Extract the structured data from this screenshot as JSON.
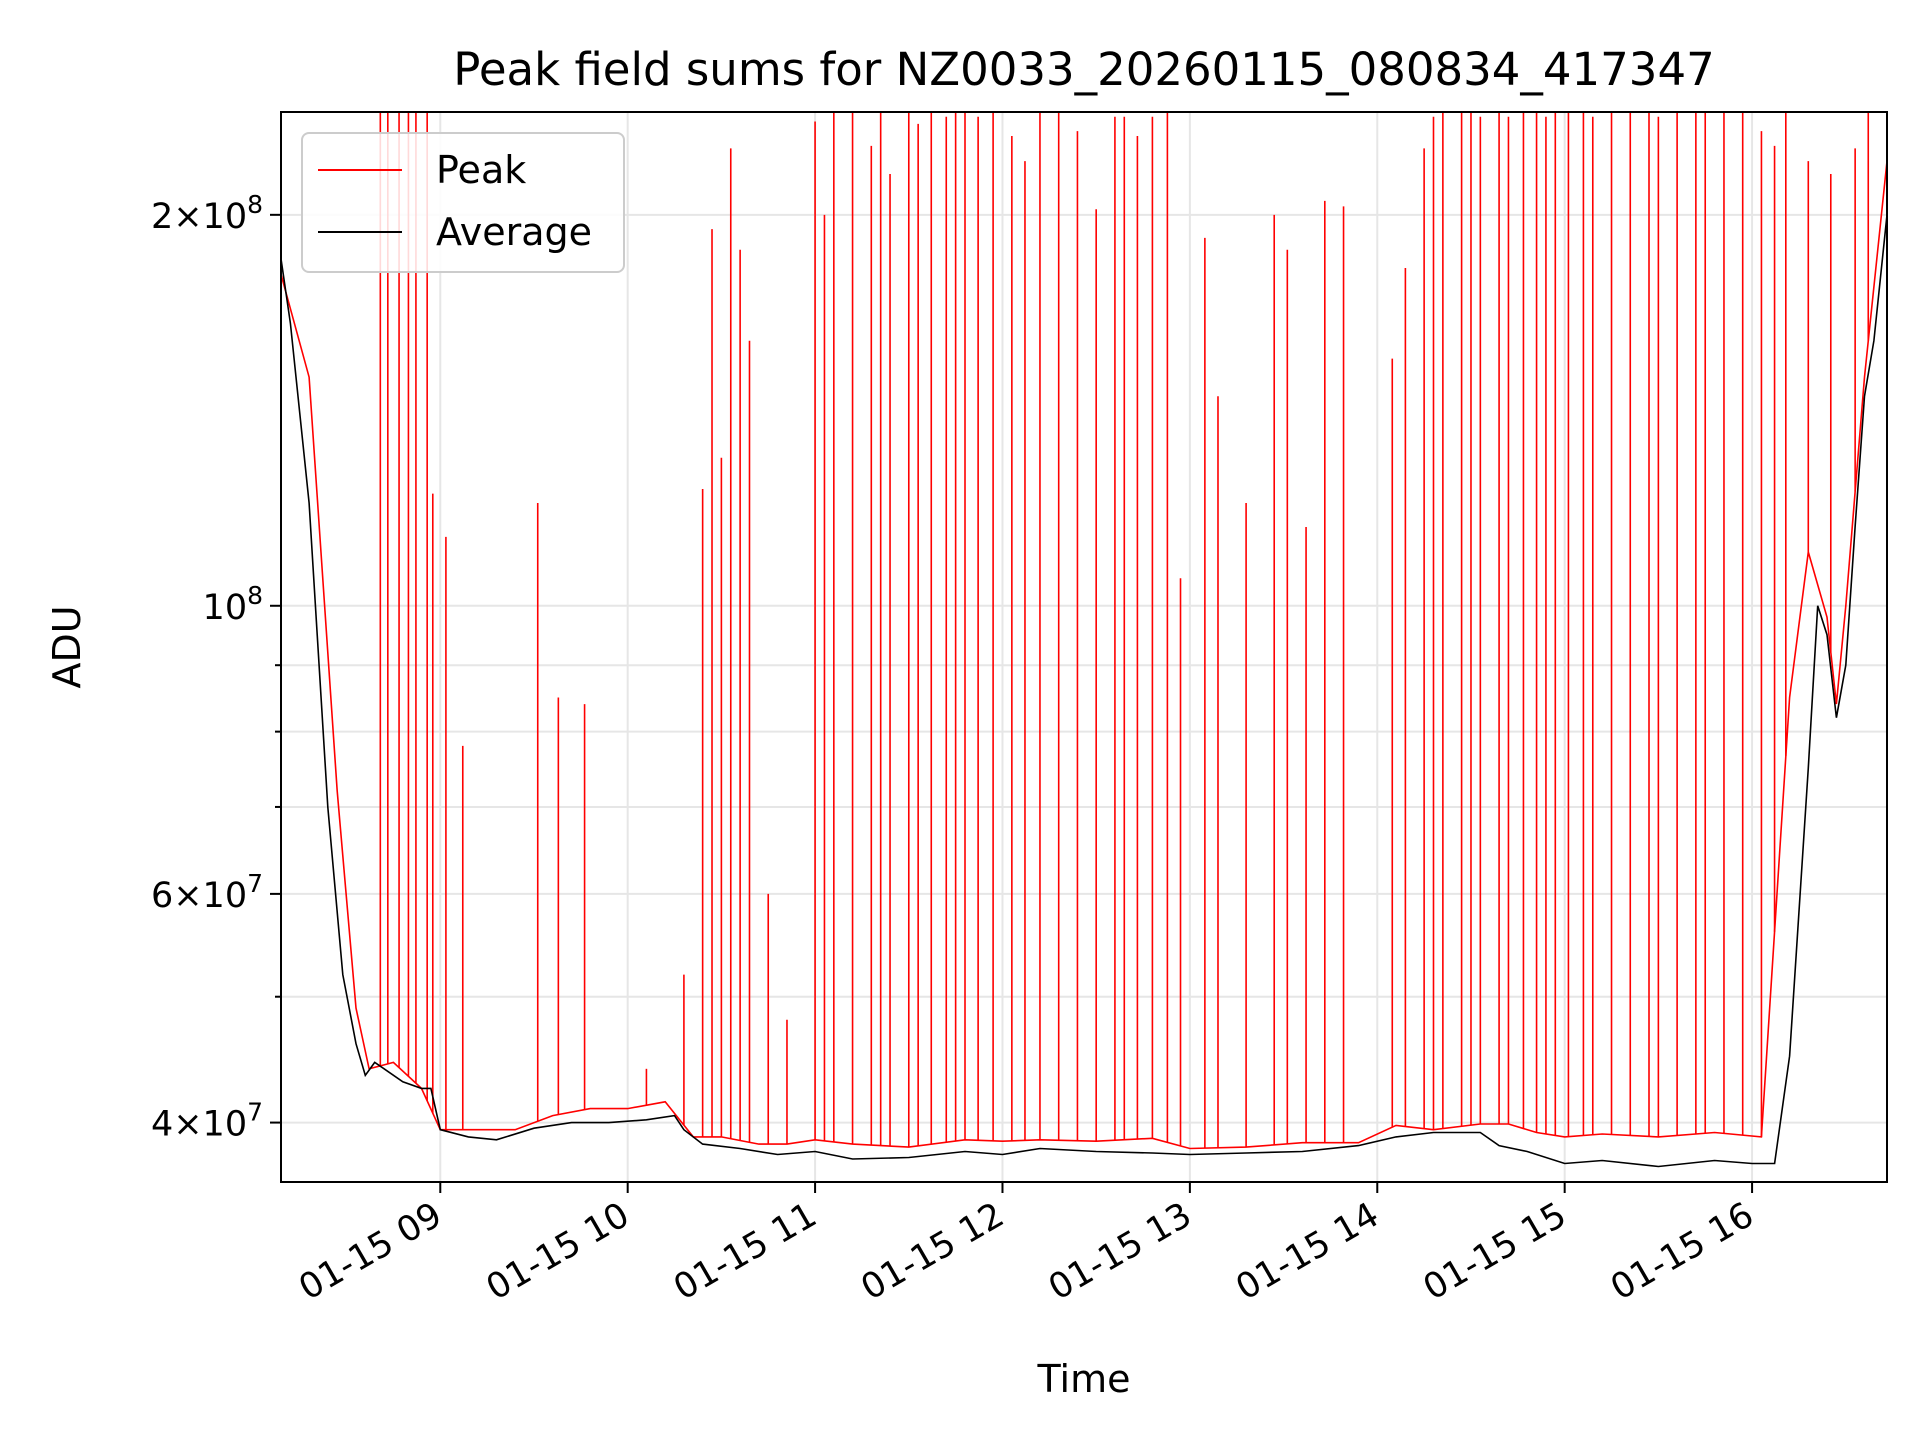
{
  "chart_data": {
    "type": "line",
    "title": "Peak field sums for NZ0033_20260115_080834_417347",
    "xlabel": "Time",
    "ylabel": "ADU",
    "yscale": "log",
    "grid": true,
    "legend_position": "upper-left",
    "x_unit": "hours since 01-15 00:00",
    "xlim": [
      8.15,
      16.72
    ],
    "ylim": [
      36000000,
      240000000
    ],
    "x_ticks": [
      {
        "value": 9,
        "label": "01-15 09"
      },
      {
        "value": 10,
        "label": "01-15 10"
      },
      {
        "value": 11,
        "label": "01-15 11"
      },
      {
        "value": 12,
        "label": "01-15 12"
      },
      {
        "value": 13,
        "label": "01-15 13"
      },
      {
        "value": 14,
        "label": "01-15 14"
      },
      {
        "value": 15,
        "label": "01-15 15"
      },
      {
        "value": 16,
        "label": "01-15 16"
      }
    ],
    "y_ticks": [
      {
        "value": 40000000,
        "base": "4×10",
        "exp": "7"
      },
      {
        "value": 60000000,
        "base": "6×10",
        "exp": "7"
      },
      {
        "value": 100000000,
        "base": "10",
        "exp": "8"
      },
      {
        "value": 200000000,
        "base": "2×10",
        "exp": "8"
      }
    ],
    "y_minor_ticks": [
      50000000,
      70000000,
      80000000,
      90000000
    ],
    "series": [
      {
        "name": "Peak",
        "color": "#ff0000",
        "baseline": {
          "x": [
            8.15,
            8.3,
            8.45,
            8.55,
            8.62,
            8.75,
            8.9,
            9.0,
            9.2,
            9.4,
            9.6,
            9.8,
            10.0,
            10.2,
            10.35,
            10.5,
            10.7,
            10.85,
            11.0,
            11.2,
            11.5,
            11.8,
            12.0,
            12.2,
            12.5,
            12.8,
            13.0,
            13.3,
            13.6,
            13.9,
            14.1,
            14.3,
            14.55,
            14.7,
            14.85,
            15.0,
            15.2,
            15.5,
            15.8,
            16.05,
            16.2,
            16.3,
            16.4,
            16.45,
            16.5,
            16.6,
            16.72
          ],
          "y": [
            180000000,
            150000000,
            72000000,
            49000000,
            44000000,
            44500000,
            42500000,
            39500000,
            39500000,
            39500000,
            40500000,
            41000000,
            41000000,
            41500000,
            39000000,
            39000000,
            38500000,
            38500000,
            38800000,
            38500000,
            38300000,
            38800000,
            38700000,
            38800000,
            38700000,
            38900000,
            38200000,
            38300000,
            38600000,
            38600000,
            39800000,
            39500000,
            39900000,
            39900000,
            39300000,
            39000000,
            39200000,
            39000000,
            39300000,
            39000000,
            85000000,
            110000000,
            98000000,
            84000000,
            100000000,
            150000000,
            220000000
          ]
        },
        "spikes": [
          {
            "x": 8.68,
            "y": 240000000
          },
          {
            "x": 8.72,
            "y": 240000000
          },
          {
            "x": 8.78,
            "y": 240000000
          },
          {
            "x": 8.83,
            "y": 240000000
          },
          {
            "x": 8.87,
            "y": 240000000
          },
          {
            "x": 8.93,
            "y": 240000000
          },
          {
            "x": 8.96,
            "y": 122000000
          },
          {
            "x": 9.03,
            "y": 113000000
          },
          {
            "x": 9.12,
            "y": 78000000
          },
          {
            "x": 9.52,
            "y": 120000000
          },
          {
            "x": 9.63,
            "y": 85000000
          },
          {
            "x": 9.77,
            "y": 84000000
          },
          {
            "x": 10.1,
            "y": 44000000
          },
          {
            "x": 10.3,
            "y": 52000000
          },
          {
            "x": 10.4,
            "y": 123000000
          },
          {
            "x": 10.45,
            "y": 195000000
          },
          {
            "x": 10.5,
            "y": 130000000
          },
          {
            "x": 10.55,
            "y": 225000000
          },
          {
            "x": 10.6,
            "y": 188000000
          },
          {
            "x": 10.65,
            "y": 160000000
          },
          {
            "x": 10.75,
            "y": 60000000
          },
          {
            "x": 10.85,
            "y": 48000000
          },
          {
            "x": 11.0,
            "y": 236000000
          },
          {
            "x": 11.05,
            "y": 200000000
          },
          {
            "x": 11.1,
            "y": 240000000
          },
          {
            "x": 11.2,
            "y": 240000000
          },
          {
            "x": 11.3,
            "y": 226000000
          },
          {
            "x": 11.35,
            "y": 240000000
          },
          {
            "x": 11.4,
            "y": 215000000
          },
          {
            "x": 11.5,
            "y": 240000000
          },
          {
            "x": 11.55,
            "y": 235000000
          },
          {
            "x": 11.62,
            "y": 240000000
          },
          {
            "x": 11.7,
            "y": 238000000
          },
          {
            "x": 11.75,
            "y": 240000000
          },
          {
            "x": 11.8,
            "y": 240000000
          },
          {
            "x": 11.87,
            "y": 238000000
          },
          {
            "x": 11.95,
            "y": 240000000
          },
          {
            "x": 12.05,
            "y": 230000000
          },
          {
            "x": 12.12,
            "y": 220000000
          },
          {
            "x": 12.2,
            "y": 240000000
          },
          {
            "x": 12.3,
            "y": 240000000
          },
          {
            "x": 12.4,
            "y": 232000000
          },
          {
            "x": 12.5,
            "y": 202000000
          },
          {
            "x": 12.6,
            "y": 238000000
          },
          {
            "x": 12.65,
            "y": 238000000
          },
          {
            "x": 12.72,
            "y": 230000000
          },
          {
            "x": 12.8,
            "y": 238000000
          },
          {
            "x": 12.88,
            "y": 240000000
          },
          {
            "x": 12.95,
            "y": 105000000
          },
          {
            "x": 13.08,
            "y": 192000000
          },
          {
            "x": 13.15,
            "y": 145000000
          },
          {
            "x": 13.3,
            "y": 120000000
          },
          {
            "x": 13.45,
            "y": 200000000
          },
          {
            "x": 13.52,
            "y": 188000000
          },
          {
            "x": 13.62,
            "y": 115000000
          },
          {
            "x": 13.72,
            "y": 205000000
          },
          {
            "x": 13.82,
            "y": 203000000
          },
          {
            "x": 14.08,
            "y": 155000000
          },
          {
            "x": 14.15,
            "y": 182000000
          },
          {
            "x": 14.25,
            "y": 225000000
          },
          {
            "x": 14.3,
            "y": 238000000
          },
          {
            "x": 14.35,
            "y": 240000000
          },
          {
            "x": 14.45,
            "y": 240000000
          },
          {
            "x": 14.5,
            "y": 240000000
          },
          {
            "x": 14.55,
            "y": 238000000
          },
          {
            "x": 14.65,
            "y": 240000000
          },
          {
            "x": 14.7,
            "y": 238000000
          },
          {
            "x": 14.78,
            "y": 240000000
          },
          {
            "x": 14.85,
            "y": 240000000
          },
          {
            "x": 14.9,
            "y": 238000000
          },
          {
            "x": 14.95,
            "y": 240000000
          },
          {
            "x": 15.02,
            "y": 240000000
          },
          {
            "x": 15.1,
            "y": 240000000
          },
          {
            "x": 15.15,
            "y": 238000000
          },
          {
            "x": 15.25,
            "y": 240000000
          },
          {
            "x": 15.35,
            "y": 240000000
          },
          {
            "x": 15.45,
            "y": 240000000
          },
          {
            "x": 15.5,
            "y": 238000000
          },
          {
            "x": 15.6,
            "y": 240000000
          },
          {
            "x": 15.7,
            "y": 240000000
          },
          {
            "x": 15.75,
            "y": 240000000
          },
          {
            "x": 15.85,
            "y": 240000000
          },
          {
            "x": 15.95,
            "y": 240000000
          },
          {
            "x": 16.05,
            "y": 232000000
          },
          {
            "x": 16.12,
            "y": 226000000
          },
          {
            "x": 16.18,
            "y": 240000000
          },
          {
            "x": 16.3,
            "y": 220000000
          },
          {
            "x": 16.42,
            "y": 215000000
          },
          {
            "x": 16.55,
            "y": 225000000
          },
          {
            "x": 16.62,
            "y": 240000000
          }
        ]
      },
      {
        "name": "Average",
        "color": "#000000",
        "x": [
          8.15,
          8.2,
          8.3,
          8.4,
          8.48,
          8.55,
          8.6,
          8.65,
          8.7,
          8.8,
          8.9,
          8.95,
          9.0,
          9.15,
          9.3,
          9.5,
          9.7,
          9.9,
          10.1,
          10.25,
          10.3,
          10.4,
          10.6,
          10.8,
          11.0,
          11.2,
          11.5,
          11.8,
          12.0,
          12.2,
          12.5,
          12.8,
          13.0,
          13.3,
          13.6,
          13.9,
          14.1,
          14.3,
          14.55,
          14.65,
          14.8,
          15.0,
          15.2,
          15.5,
          15.8,
          16.0,
          16.12,
          16.2,
          16.3,
          16.35,
          16.4,
          16.45,
          16.5,
          16.55,
          16.6,
          16.65,
          16.72
        ],
        "y": [
          185000000,
          165000000,
          120000000,
          70000000,
          52000000,
          46000000,
          43500000,
          44500000,
          44000000,
          43000000,
          42500000,
          42500000,
          39500000,
          39000000,
          38800000,
          39600000,
          40000000,
          40000000,
          40200000,
          40500000,
          39500000,
          38500000,
          38200000,
          37800000,
          38000000,
          37500000,
          37600000,
          38000000,
          37800000,
          38200000,
          38000000,
          37900000,
          37800000,
          37900000,
          38000000,
          38400000,
          39000000,
          39300000,
          39300000,
          38400000,
          38000000,
          37200000,
          37400000,
          37000000,
          37400000,
          37200000,
          37200000,
          45000000,
          75000000,
          100000000,
          95000000,
          82000000,
          90000000,
          115000000,
          145000000,
          160000000,
          200000000
        ]
      }
    ]
  }
}
